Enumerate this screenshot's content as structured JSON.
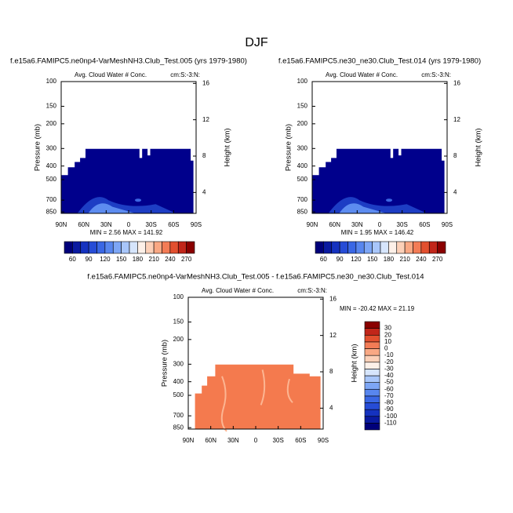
{
  "title": "DJF",
  "chart_data": [
    {
      "type": "contour",
      "title": "f.e15a6.FAMIPC5.ne0np4-VarMeshNH3.Club_Test.005 (yrs 1979-1980)",
      "subtitle": "Avg. Cloud Water # Conc.",
      "units": "cm:S:-3:N:",
      "y_label": "Pressure (mb)",
      "y2_label": "Height (km)",
      "min_max": "MIN =  2.56  MAX = 141.92",
      "xlim": [
        90,
        -90
      ],
      "xticks": [
        {
          "value": 90,
          "label": "90N"
        },
        {
          "value": 60,
          "label": "60N"
        },
        {
          "value": 30,
          "label": "30N"
        },
        0,
        {
          "value": -30,
          "label": "30S"
        },
        {
          "value": -60,
          "label": "60S"
        },
        {
          "value": -90,
          "label": "90S"
        }
      ],
      "ylim": [
        100,
        870
      ],
      "log_y": true,
      "yticks": [
        100,
        150,
        200,
        300,
        400,
        500,
        700,
        850
      ],
      "y2lim": [
        1.7,
        16.2
      ],
      "y2ticks": [
        4,
        8,
        12,
        16
      ],
      "colorbar": {
        "levels": [
          60,
          75,
          90,
          105,
          120,
          135,
          150,
          165,
          180,
          195,
          210,
          225,
          240,
          255,
          270
        ],
        "ticks": [
          60,
          90,
          120,
          150,
          180,
          210,
          240,
          270
        ],
        "colors": [
          "#00007a",
          "#0a1aa0",
          "#1532bf",
          "#264cd6",
          "#3a67e4",
          "#5886ee",
          "#7da6f5",
          "#a8c6fa",
          "#d6e5fc",
          "#fdf0e8",
          "#fcd0b8",
          "#f9a884",
          "#f37c56",
          "#e2502f",
          "#c1261a",
          "#8a0000"
        ]
      }
    },
    {
      "type": "contour",
      "title": "f.e15a6.FAMIPC5.ne30_ne30.Club_Test.014 (yrs 1979-1980)",
      "subtitle": "Avg. Cloud Water # Conc.",
      "units": "cm:S:-3:N:",
      "y_label": "Pressure (mb)",
      "y2_label": "Height (km)",
      "min_max": "MIN =  1.95  MAX = 146.42",
      "xlim": [
        90,
        -90
      ],
      "xticks": [
        {
          "value": 90,
          "label": "90N"
        },
        {
          "value": 60,
          "label": "60N"
        },
        {
          "value": 30,
          "label": "30N"
        },
        0,
        {
          "value": -30,
          "label": "30S"
        },
        {
          "value": -60,
          "label": "60S"
        },
        {
          "value": -90,
          "label": "90S"
        }
      ],
      "ylim": [
        100,
        870
      ],
      "log_y": true,
      "yticks": [
        100,
        150,
        200,
        300,
        400,
        500,
        700,
        850
      ],
      "y2lim": [
        1.7,
        16.2
      ],
      "y2ticks": [
        4,
        8,
        12,
        16
      ],
      "colorbar": {
        "levels": [
          60,
          75,
          90,
          105,
          120,
          135,
          150,
          165,
          180,
          195,
          210,
          225,
          240,
          255,
          270
        ],
        "ticks": [
          60,
          90,
          120,
          150,
          180,
          210,
          240,
          270
        ],
        "colors": [
          "#00007a",
          "#0a1aa0",
          "#1532bf",
          "#264cd6",
          "#3a67e4",
          "#5886ee",
          "#7da6f5",
          "#a8c6fa",
          "#d6e5fc",
          "#fdf0e8",
          "#fcd0b8",
          "#f9a884",
          "#f37c56",
          "#e2502f",
          "#c1261a",
          "#8a0000"
        ]
      }
    },
    {
      "type": "contour",
      "title": "f.e15a6.FAMIPC5.ne0np4-VarMeshNH3.Club_Test.005 - f.e15a6.FAMIPC5.ne30_ne30.Club_Test.014",
      "subtitle": "Avg. Cloud Water # Conc.",
      "units": "cm:S:-3:N:",
      "y_label": "Pressure (mb)",
      "y2_label": "Height (km)",
      "min_max": "MIN = -20.42  MAX = 21.19",
      "xlim": [
        90,
        -90
      ],
      "xticks": [
        {
          "value": 90,
          "label": "90N"
        },
        {
          "value": 60,
          "label": "60N"
        },
        {
          "value": 30,
          "label": "30N"
        },
        0,
        {
          "value": -30,
          "label": "30S"
        },
        {
          "value": -60,
          "label": "60S"
        },
        {
          "value": -90,
          "label": "90S"
        }
      ],
      "ylim": [
        100,
        870
      ],
      "log_y": true,
      "yticks": [
        100,
        150,
        200,
        300,
        400,
        500,
        700,
        850
      ],
      "y2lim": [
        1.7,
        16.2
      ],
      "y2ticks": [
        4,
        8,
        12,
        16
      ],
      "colorbar": {
        "levels": [
          -110,
          -100,
          -90,
          -80,
          -70,
          -60,
          -50,
          -40,
          -30,
          -20,
          -10,
          0,
          10,
          20,
          30
        ],
        "ticks": [
          -110,
          -100,
          -90,
          -80,
          -70,
          -60,
          -50,
          -40,
          -30,
          -20,
          -10,
          0,
          10,
          20,
          30
        ],
        "colors": [
          "#00007a",
          "#0a1aa0",
          "#1532bf",
          "#264cd6",
          "#3a67e4",
          "#5886ee",
          "#7da6f5",
          "#a8c6fa",
          "#d6e5fc",
          "#fdf0e8",
          "#fcd0b8",
          "#f9a884",
          "#f37c56",
          "#e2502f",
          "#c1261a",
          "#8a0000"
        ]
      }
    }
  ]
}
